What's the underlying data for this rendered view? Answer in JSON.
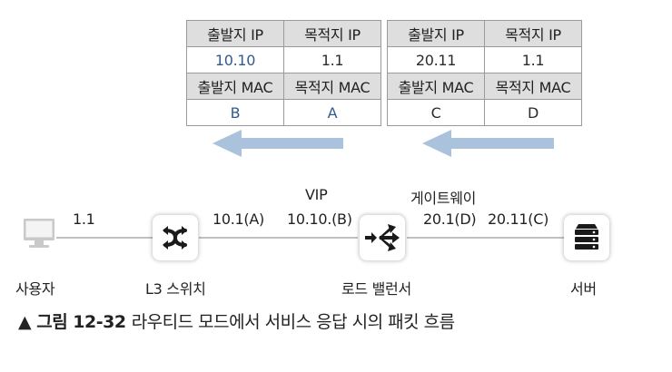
{
  "tables": {
    "left": {
      "header1": [
        "출발지 IP",
        "목적지 IP"
      ],
      "row1": [
        "10.10",
        "1.1"
      ],
      "header2": [
        "출발지 MAC",
        "목적지 MAC"
      ],
      "row2": [
        "B",
        "A"
      ]
    },
    "right": {
      "header1": [
        "출발지 IP",
        "목적지 IP"
      ],
      "row1": [
        "20.11",
        "1.1"
      ],
      "header2": [
        "출발지 MAC",
        "목적지 MAC"
      ],
      "row2": [
        "C",
        "D"
      ]
    }
  },
  "nodes": {
    "user": {
      "label": "사용자",
      "ip": "1.1"
    },
    "l3switch": {
      "label": "L3 스위치",
      "ip": "10.1(A)"
    },
    "loadbalancer": {
      "label": "로드 밸런서",
      "vip_label": "VIP",
      "vip": "10.10.(B)",
      "gw_label": "게이트웨이",
      "gw_ip": "20.1(D)"
    },
    "server": {
      "label": "서버",
      "ip": "20.11(C)"
    }
  },
  "caption": {
    "number": "▲ 그림 12-32",
    "text": "라우티드 모드에서 서비스 응답 시의 패킷 흐름"
  },
  "colors": {
    "arrow": "#aac2dc",
    "blue_text": "#2f5b8e",
    "header_bg": "#dedede"
  },
  "icons": {
    "user": "computer-icon",
    "l3switch": "switch-cross-arrows-icon",
    "loadbalancer": "load-balancer-arrows-icon",
    "server": "server-rack-icon"
  }
}
